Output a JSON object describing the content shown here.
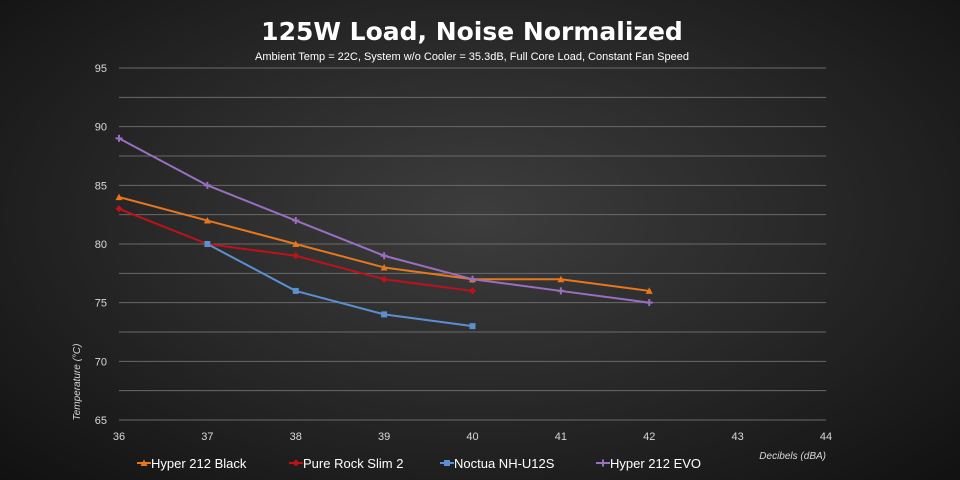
{
  "chart_data": {
    "type": "line",
    "title": "125W Load, Noise Normalized",
    "subtitle": "Ambient Temp = 22C, System w/o Cooler = 35.3dB, Full Core Load, Constant Fan Speed",
    "xlabel": "Decibels (dBA)",
    "ylabel": "Temperature (°C)",
    "xlim": [
      36,
      44
    ],
    "ylim": [
      65,
      95
    ],
    "x_ticks": [
      "36",
      "37",
      "38",
      "39",
      "40",
      "41",
      "42",
      "43",
      "44"
    ],
    "y_ticks": [
      "65",
      "70",
      "75",
      "80",
      "85",
      "90",
      "95"
    ],
    "grid": true,
    "legend_position": "bottom",
    "series": [
      {
        "name": "Hyper 212 Black",
        "color": "#e8761c",
        "marker": "triangle",
        "x": [
          36,
          37,
          38,
          39,
          40,
          41,
          42
        ],
        "y": [
          84,
          82,
          80,
          78,
          77,
          77,
          76
        ]
      },
      {
        "name": "Pure Rock Slim 2",
        "color": "#c0111a",
        "marker": "diamond",
        "x": [
          36,
          37,
          38,
          39,
          40
        ],
        "y": [
          83,
          80,
          79,
          77,
          76
        ]
      },
      {
        "name": "Noctua NH-U12S",
        "color": "#5b8fd0",
        "marker": "square",
        "x": [
          37,
          38,
          39,
          40
        ],
        "y": [
          80,
          76,
          74,
          73
        ]
      },
      {
        "name": "Hyper 212 EVO",
        "color": "#9b6fc0",
        "marker": "plus",
        "x": [
          36,
          37,
          38,
          39,
          40,
          41,
          42
        ],
        "y": [
          89,
          85,
          82,
          79,
          77,
          76,
          75
        ]
      }
    ]
  }
}
